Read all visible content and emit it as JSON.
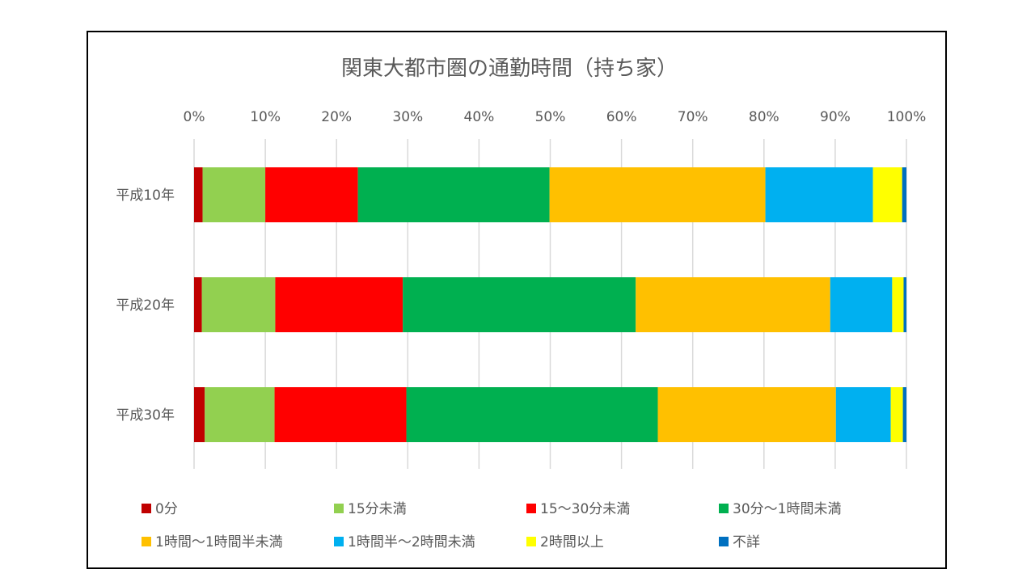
{
  "chart_data": {
    "type": "bar",
    "orientation": "horizontal",
    "stacked": true,
    "percent_stacked": true,
    "title": "関東大都市圏の通勤時間（持ち家）",
    "categories": [
      "平成10年",
      "平成20年",
      "平成30年"
    ],
    "xlim": [
      0,
      100
    ],
    "x_ticks": [
      "0%",
      "10%",
      "20%",
      "30%",
      "40%",
      "50%",
      "60%",
      "70%",
      "80%",
      "90%",
      "100%"
    ],
    "x_axis_position": "top",
    "grid": "vertical",
    "legend_position": "bottom",
    "series": [
      {
        "name": "0分",
        "color": "#C00000",
        "values": [
          1.2,
          1.1,
          1.5
        ]
      },
      {
        "name": "15分未満",
        "color": "#92D050",
        "values": [
          8.8,
          10.3,
          9.8
        ]
      },
      {
        "name": "15〜30分未満",
        "color": "#FF0000",
        "values": [
          13.0,
          17.9,
          18.5
        ]
      },
      {
        "name": "30分〜1時間未満",
        "color": "#00B050",
        "values": [
          26.9,
          32.7,
          35.3
        ]
      },
      {
        "name": "1時間〜1時間半未満",
        "color": "#FFC000",
        "values": [
          30.3,
          27.3,
          25.0
        ]
      },
      {
        "name": "1時間半〜2時間未満",
        "color": "#00B0F0",
        "values": [
          15.1,
          8.7,
          7.7
        ]
      },
      {
        "name": "2時間以上",
        "color": "#FFFF00",
        "values": [
          4.1,
          1.6,
          1.7
        ]
      },
      {
        "name": "不詳",
        "color": "#0070C0",
        "values": [
          0.6,
          0.4,
          0.5
        ]
      }
    ]
  }
}
